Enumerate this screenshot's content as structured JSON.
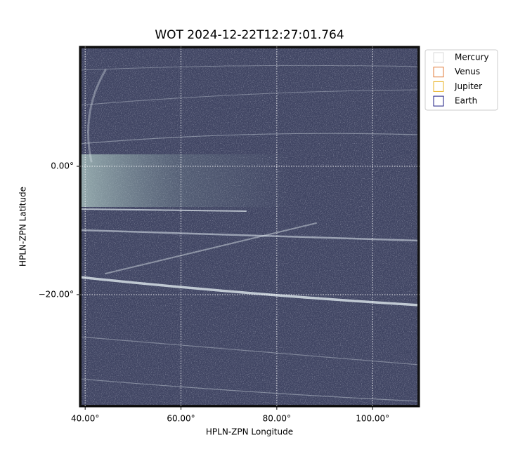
{
  "chart_data": {
    "type": "image",
    "title": "WOT 2024-12-22T12:27:01.764",
    "xlabel": "HPLN-ZPN Longitude",
    "ylabel": "HPLN-ZPN Latitude",
    "xlim": [
      38.8,
      109.8
    ],
    "ylim": [
      -37.5,
      18.7
    ],
    "xticks": [
      {
        "value": 40,
        "label": "40.00°"
      },
      {
        "value": 60,
        "label": "60.00°"
      },
      {
        "value": 80,
        "label": "80.00°"
      },
      {
        "value": 100,
        "label": "100.00°"
      }
    ],
    "yticks": [
      {
        "value": 0,
        "label": "0.00°"
      },
      {
        "value": -20,
        "label": "−20.00°"
      }
    ],
    "grid": true,
    "legend_position": "upper-right-outside",
    "series": [
      {
        "name": "Mercury",
        "color": "#d9d9d9"
      },
      {
        "name": "Venus",
        "color": "#e07b39"
      },
      {
        "name": "Jupiter",
        "color": "#e8b020"
      },
      {
        "name": "Earth",
        "color": "#1a1a80"
      }
    ]
  }
}
